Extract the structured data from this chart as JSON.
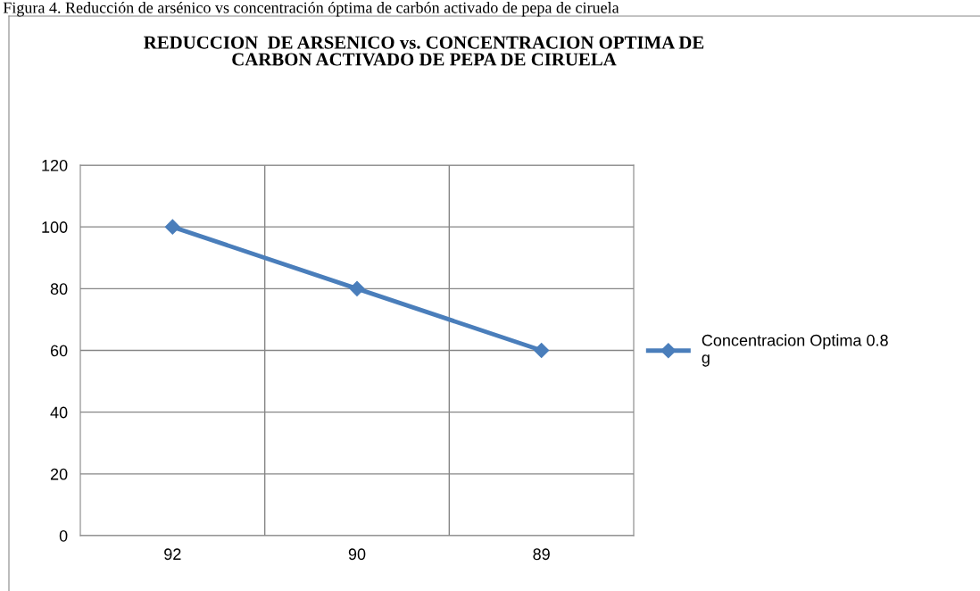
{
  "chart_data": {
    "type": "line",
    "title": "REDUCCION  DE ARSENICO vs. CONCENTRACION OPTIMA DE\nCARBON ACTIVADO DE PEPA DE CIRUELA",
    "annotations": [
      "Figura 4. Reducción de arsénico vs concentración óptima de carbón activado de pepa de ciruela"
    ],
    "categories": [
      "92",
      "90",
      "89"
    ],
    "series": [
      {
        "name": "Concentracion Optima 0.8\ng",
        "color": "#4a7ebb",
        "values": [
          100,
          80,
          60
        ]
      }
    ],
    "ylim": [
      0,
      120
    ],
    "yticks": [
      0,
      20,
      40,
      60,
      80,
      100,
      120
    ],
    "grid": true,
    "legend": "right",
    "marker": "diamond",
    "line_style": "solid"
  }
}
